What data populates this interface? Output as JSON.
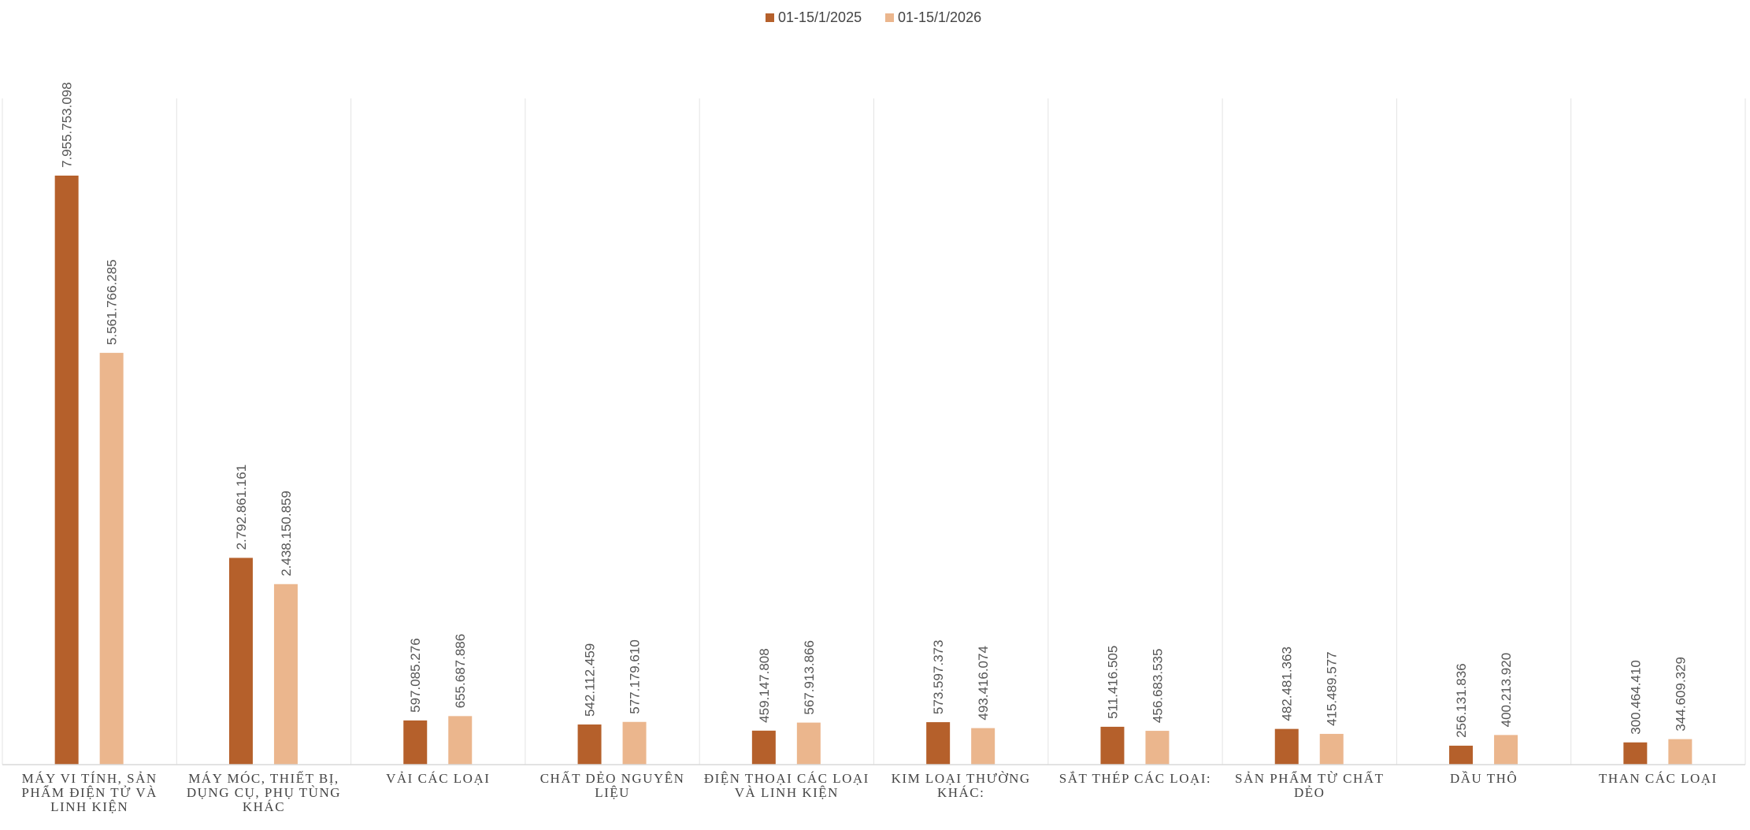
{
  "chart_data": {
    "type": "bar",
    "title": "",
    "xlabel": "",
    "ylabel": "",
    "grid": "vertical category separators",
    "legend_position": "top-center",
    "categories": [
      "MÁY VI TÍNH, SẢN PHẨM ĐIỆN TỬ VÀ LINH KIỆN",
      "MÁY MÓC, THIẾT BỊ, DỤNG CỤ, PHỤ TÙNG KHÁC",
      "VẢI CÁC LOẠI",
      "CHẤT DẺO NGUYÊN LIỆU",
      "ĐIỆN THOẠI CÁC LOẠI VÀ LINH KIỆN",
      "KIM LOẠI THƯỜNG KHÁC:",
      "SẮT THÉP CÁC LOẠI:",
      "SẢN PHẨM TỪ CHẤT DẺO",
      "DẦU THÔ",
      "THAN CÁC LOẠI"
    ],
    "category_lines": [
      [
        "MÁY VI TÍNH, SẢN",
        "PHẨM ĐIỆN TỬ VÀ",
        "LINH KIỆN"
      ],
      [
        "MÁY MÓC, THIẾT BỊ,",
        "DỤNG CỤ, PHỤ TÙNG",
        "KHÁC"
      ],
      [
        "VẢI CÁC LOẠI"
      ],
      [
        "CHẤT DẺO NGUYÊN",
        "LIỆU"
      ],
      [
        "ĐIỆN THOẠI CÁC LOẠI",
        "VÀ LINH KIỆN"
      ],
      [
        "KIM LOẠI THƯỜNG",
        "KHÁC:"
      ],
      [
        "SẮT THÉP CÁC LOẠI:"
      ],
      [
        "SẢN PHẨM TỪ CHẤT",
        "DẺO"
      ],
      [
        "DẦU THÔ"
      ],
      [
        "THAN CÁC LOẠI"
      ]
    ],
    "ylim": [
      0,
      9000000000
    ],
    "series": [
      {
        "name": "01-15/1/2025",
        "color": "#B5602B",
        "values": [
          7955753098,
          2792861161,
          597085276,
          542112459,
          459147808,
          573597373,
          511416505,
          482481363,
          256131836,
          300464410
        ],
        "labels": [
          "7.955.753.098",
          "2.792.861.161",
          "597.085.276",
          "542.112.459",
          "459.147.808",
          "573.597.373",
          "511.416.505",
          "482.481.363",
          "256.131.836",
          "300.464.410"
        ]
      },
      {
        "name": "01-15/1/2026",
        "color": "#EBB68D",
        "values": [
          5561766285,
          2438150859,
          655687886,
          577179610,
          567913866,
          493416074,
          456683535,
          415489577,
          400213920,
          344609329
        ],
        "labels": [
          "5.561.766.285",
          "2.438.150.859",
          "655.687.886",
          "577.179.610",
          "567.913.866",
          "493.416.074",
          "456.683.535",
          "415.489.577",
          "400.213.920",
          "344.609.329"
        ]
      }
    ]
  }
}
